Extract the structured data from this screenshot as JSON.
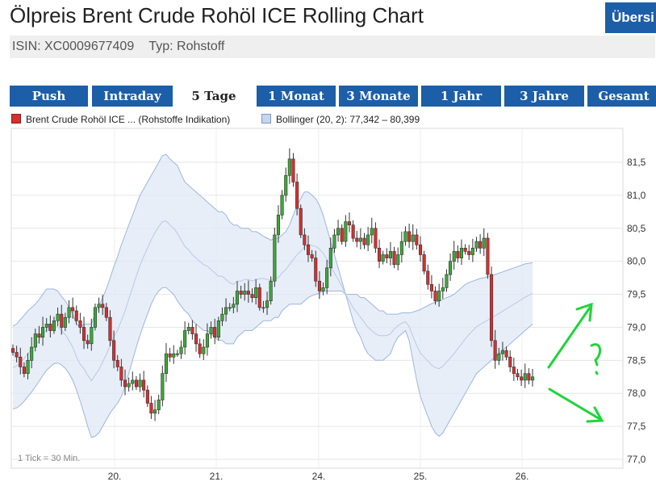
{
  "header": {
    "title": "Ölpreis Brent Crude Rohöl ICE Rolling Chart",
    "overview_button": "Übersi",
    "isin": "ISIN: XC0009677409",
    "type": "Typ: Rohstoff"
  },
  "tabs": [
    {
      "label": "Push",
      "active": false
    },
    {
      "label": "Intraday",
      "active": false
    },
    {
      "label": "5 Tage",
      "active": true
    },
    {
      "label": "1 Monat",
      "active": false
    },
    {
      "label": "3 Monate",
      "active": false
    },
    {
      "label": "1 Jahr",
      "active": false
    },
    {
      "label": "3 Jahre",
      "active": false
    },
    {
      "label": "Gesamt",
      "active": false
    }
  ],
  "legend": {
    "series_label": "Brent Crude Rohöl ICE ... (Rohstoffe Indikation)",
    "bollinger_label": "Bollinger (20, 2): 77,342 – 80,399"
  },
  "colors": {
    "tab_bg": "#1c5ea8",
    "candle_up": "#3aaa35",
    "candle_down": "#d62f2f",
    "bollinger_fill": "#dfe8f6",
    "bollinger_line": "#9db6dc",
    "annotation": "#1fd43a"
  },
  "chart_data": {
    "type": "candlestick",
    "tick_note": "1 Tick = 30 Min.",
    "x_tick_labels": [
      "20.",
      "21.",
      "24.",
      "25.",
      "26."
    ],
    "y_tick_labels": [
      "81,5",
      "81,0",
      "80,5",
      "80,0",
      "79,5",
      "79,0",
      "78,5",
      "78,0",
      "77,5",
      "77,0"
    ],
    "y_ticks": [
      81.5,
      81.0,
      80.5,
      80.0,
      79.5,
      79.0,
      78.5,
      78.0,
      77.5,
      77.0
    ],
    "ylim": [
      76.95,
      81.95
    ],
    "grid": true,
    "close": [
      78.62,
      78.55,
      78.4,
      78.3,
      78.5,
      78.7,
      78.9,
      78.85,
      79.0,
      79.05,
      78.95,
      79.1,
      79.2,
      79.0,
      79.15,
      79.3,
      79.25,
      79.1,
      79.0,
      78.8,
      78.75,
      79.0,
      79.3,
      79.35,
      79.3,
      79.15,
      78.8,
      78.5,
      78.4,
      78.2,
      78.1,
      78.15,
      78.2,
      78.1,
      78.2,
      78.05,
      77.85,
      77.7,
      77.75,
      77.9,
      78.3,
      78.6,
      78.55,
      78.6,
      78.6,
      78.7,
      78.95,
      79.0,
      78.9,
      78.75,
      78.6,
      78.7,
      78.9,
      79.0,
      78.85,
      79.1,
      79.2,
      79.3,
      79.3,
      79.35,
      79.55,
      79.5,
      79.55,
      79.5,
      79.45,
      79.6,
      79.3,
      79.3,
      79.4,
      79.7,
      80.4,
      80.7,
      81.0,
      81.3,
      81.55,
      81.2,
      80.8,
      80.4,
      80.25,
      80.1,
      80.05,
      79.7,
      79.55,
      79.6,
      79.9,
      80.2,
      80.4,
      80.5,
      80.3,
      80.6,
      80.55,
      80.35,
      80.3,
      80.35,
      80.25,
      80.4,
      80.5,
      80.2,
      80.0,
      80.1,
      80.05,
      80.15,
      79.95,
      80.1,
      80.3,
      80.45,
      80.3,
      80.4,
      80.25,
      80.1,
      79.85,
      79.65,
      79.55,
      79.4,
      79.55,
      79.6,
      79.8,
      80.0,
      80.15,
      80.05,
      80.2,
      80.15,
      80.1,
      80.2,
      80.3,
      80.2,
      80.35,
      79.8,
      78.8,
      78.5,
      78.6,
      78.65,
      78.55,
      78.4,
      78.3,
      78.25,
      78.2,
      78.3,
      78.2,
      78.25
    ],
    "bollinger_upper": [
      79.02,
      79.05,
      79.12,
      79.18,
      79.25,
      79.3,
      79.35,
      79.42,
      79.5,
      79.58,
      79.58,
      79.58,
      79.55,
      79.47,
      79.4,
      79.3,
      79.2,
      79.05,
      79.0,
      79.05,
      79.05,
      79.05,
      79.2,
      79.32,
      79.45,
      79.58,
      79.75,
      79.92,
      80.07,
      80.25,
      80.4,
      80.55,
      80.7,
      80.85,
      81.0,
      81.1,
      81.2,
      81.3,
      81.4,
      81.5,
      81.6,
      81.62,
      81.55,
      81.5,
      81.45,
      81.32,
      81.2,
      81.15,
      81.1,
      81.05,
      81.0,
      80.95,
      80.9,
      80.85,
      80.8,
      80.75,
      80.75,
      80.7,
      80.6,
      80.55,
      80.55,
      80.5,
      80.5,
      80.5,
      80.45,
      80.45,
      80.42,
      80.38,
      80.35,
      80.32,
      80.35,
      80.35,
      80.4,
      80.45,
      80.55,
      80.7,
      80.85,
      80.95,
      81.05,
      81.05,
      81.0,
      80.95,
      80.85,
      80.7,
      80.5,
      80.3,
      80.1,
      79.9,
      79.7,
      79.5,
      79.3,
      79.1,
      78.95,
      78.85,
      78.7,
      78.6,
      78.55,
      78.5,
      78.5,
      78.5,
      78.55,
      78.6,
      78.75,
      78.85,
      78.9,
      78.95,
      78.8,
      78.5,
      78.2,
      77.95,
      77.8,
      77.65,
      77.5,
      77.4,
      77.35,
      77.4,
      77.5,
      77.6,
      77.7,
      77.8,
      77.9,
      78.0,
      78.1,
      78.2,
      78.3,
      78.35,
      78.4,
      78.45,
      78.5,
      78.55,
      78.6,
      78.65,
      78.7,
      78.75,
      78.8,
      78.85,
      78.9,
      78.95,
      79.0,
      79.05
    ],
    "bollinger_lower": [
      77.76,
      77.78,
      77.82,
      77.88,
      77.95,
      78.02,
      78.1,
      78.18,
      78.27,
      78.35,
      78.4,
      78.45,
      78.46,
      78.43,
      78.38,
      78.3,
      78.2,
      78.05,
      77.88,
      77.7,
      77.5,
      77.33,
      77.35,
      77.4,
      77.5,
      77.6,
      77.7,
      77.78,
      77.85,
      77.95,
      78.1,
      78.3,
      78.5,
      78.7,
      78.88,
      79.05,
      79.2,
      79.35,
      79.47,
      79.55,
      79.6,
      79.6,
      79.55,
      79.5,
      79.4,
      79.32,
      79.25,
      79.2,
      79.1,
      79.05,
      79.0,
      78.95,
      78.95,
      78.9,
      78.85,
      78.8,
      78.8,
      78.75,
      78.75,
      78.75,
      78.85,
      78.9,
      78.95,
      78.95,
      78.95,
      79.0,
      79.05,
      79.1,
      79.1,
      79.1,
      79.15,
      79.15,
      79.25,
      79.3,
      79.35,
      79.35,
      79.35,
      79.35,
      79.4,
      79.45,
      79.48,
      79.5,
      79.52,
      79.55,
      79.55,
      79.55,
      79.55,
      79.55,
      79.55,
      79.5,
      79.5,
      79.5,
      79.5,
      79.45,
      79.45,
      79.4,
      79.35,
      79.3,
      79.25,
      79.25,
      79.2,
      79.2,
      79.2,
      79.2,
      79.22,
      79.22,
      79.22,
      79.23,
      79.25,
      79.27,
      79.3,
      79.33,
      79.36,
      79.38,
      79.4,
      79.42,
      79.45,
      79.47,
      79.5,
      79.55,
      79.6,
      79.65,
      79.68,
      79.7,
      79.72,
      79.74,
      79.75,
      79.77,
      79.78,
      79.8,
      79.82,
      79.84,
      79.86,
      79.88,
      79.9,
      79.92,
      79.94,
      79.96,
      79.97,
      79.98
    ]
  }
}
